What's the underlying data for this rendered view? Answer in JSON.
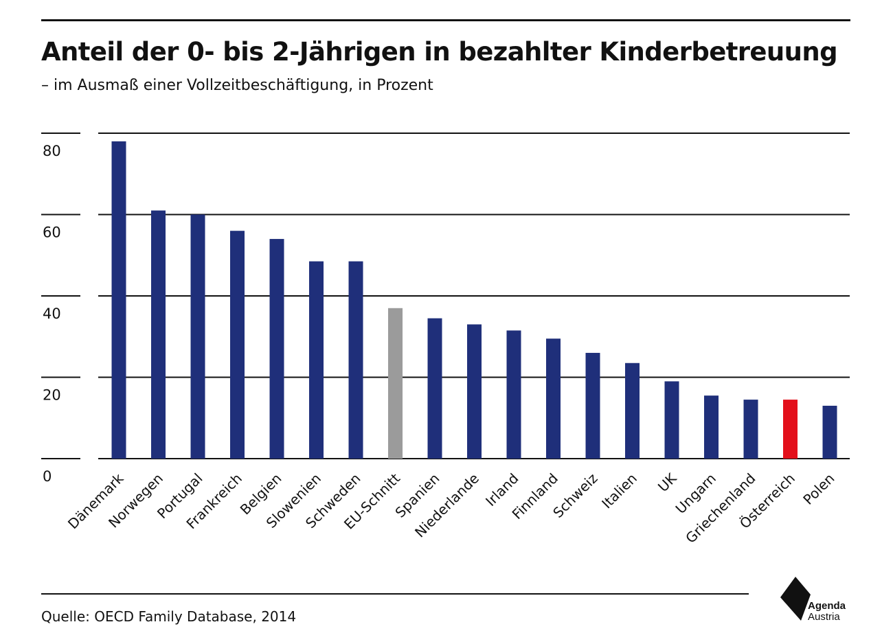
{
  "title": "Anteil der 0- bis 2-Jährigen in bezahlter Kinderbetreuung",
  "subtitle": "– im Ausmaß einer Vollzeitbeschäftigung, in Prozent",
  "source": "Quelle: OECD Family Database, 2014",
  "logo": {
    "line1": "Agenda",
    "line2": "Austria"
  },
  "colors": {
    "bar": "#1f2f7a",
    "eu_average": "#9b9b9b",
    "highlight": "#e3101b",
    "grid": "#111111"
  },
  "chart_data": {
    "type": "bar",
    "title": "Anteil der 0- bis 2-Jährigen in bezahlter Kinderbetreuung",
    "ylim": [
      0,
      80
    ],
    "yticks": [
      0,
      20,
      40,
      60,
      80
    ],
    "grid": true,
    "categories": [
      "Dänemark",
      "Norwegen",
      "Portugal",
      "Frankreich",
      "Belgien",
      "Slowenien",
      "Schweden",
      "EU-Schnitt",
      "Spanien",
      "Niederlande",
      "Irland",
      "Finnland",
      "Schweiz",
      "Italien",
      "UK",
      "Ungarn",
      "Griechenland",
      "Österreich",
      "Polen"
    ],
    "values": [
      78,
      61,
      60,
      56,
      54,
      48.5,
      48.5,
      37,
      34.5,
      33,
      31.5,
      29.5,
      26,
      23.5,
      19,
      15.5,
      14.5,
      14.5,
      13
    ],
    "highlight": {
      "EU-Schnitt": "eu_average",
      "Österreich": "highlight"
    }
  }
}
